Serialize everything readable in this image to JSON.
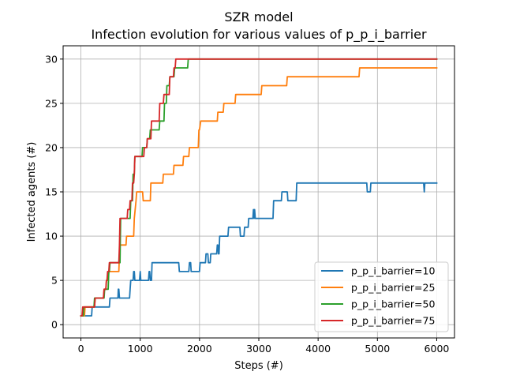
{
  "chart_data": {
    "type": "line",
    "title": "SZR model",
    "subtitle": "Infection evolution for various values of p_p_i_barrier",
    "xlabel": "Steps (#)",
    "ylabel": "Infected agents (#)",
    "xlim": [
      -300,
      6300
    ],
    "ylim": [
      -1.5,
      31.5
    ],
    "xticks": [
      0,
      1000,
      2000,
      3000,
      4000,
      5000,
      6000
    ],
    "yticks": [
      0,
      5,
      10,
      15,
      20,
      25,
      30
    ],
    "grid": true,
    "legend_position": "lower-right",
    "series": [
      {
        "name": "p_p_i_barrier=10",
        "color": "#1f77b4",
        "points": [
          [
            0,
            1
          ],
          [
            180,
            1
          ],
          [
            190,
            2
          ],
          [
            480,
            2
          ],
          [
            490,
            3
          ],
          [
            620,
            3
          ],
          [
            625,
            3
          ],
          [
            630,
            4
          ],
          [
            640,
            4
          ],
          [
            650,
            3
          ],
          [
            820,
            3
          ],
          [
            830,
            4
          ],
          [
            840,
            5
          ],
          [
            880,
            5
          ],
          [
            890,
            6
          ],
          [
            900,
            6
          ],
          [
            910,
            5
          ],
          [
            990,
            5
          ],
          [
            1000,
            6
          ],
          [
            1010,
            5
          ],
          [
            1140,
            5
          ],
          [
            1150,
            6
          ],
          [
            1160,
            6
          ],
          [
            1170,
            5
          ],
          [
            1190,
            5
          ],
          [
            1200,
            7
          ],
          [
            1650,
            7
          ],
          [
            1660,
            6
          ],
          [
            1820,
            6
          ],
          [
            1830,
            7
          ],
          [
            1850,
            7
          ],
          [
            1860,
            6
          ],
          [
            2000,
            6
          ],
          [
            2010,
            7
          ],
          [
            2100,
            7
          ],
          [
            2110,
            8
          ],
          [
            2140,
            8
          ],
          [
            2150,
            7
          ],
          [
            2180,
            7
          ],
          [
            2190,
            8
          ],
          [
            2290,
            8
          ],
          [
            2300,
            9
          ],
          [
            2310,
            9
          ],
          [
            2320,
            8
          ],
          [
            2330,
            8
          ],
          [
            2340,
            10
          ],
          [
            2480,
            10
          ],
          [
            2490,
            11
          ],
          [
            2680,
            11
          ],
          [
            2690,
            10
          ],
          [
            2750,
            10
          ],
          [
            2760,
            11
          ],
          [
            2820,
            11
          ],
          [
            2830,
            12
          ],
          [
            2900,
            12
          ],
          [
            2910,
            13
          ],
          [
            2920,
            12
          ],
          [
            2930,
            13
          ],
          [
            2940,
            12
          ],
          [
            3240,
            12
          ],
          [
            3250,
            14
          ],
          [
            3380,
            14
          ],
          [
            3390,
            15
          ],
          [
            3480,
            15
          ],
          [
            3490,
            14
          ],
          [
            3630,
            14
          ],
          [
            3640,
            16
          ],
          [
            4820,
            16
          ],
          [
            4830,
            15
          ],
          [
            4880,
            15
          ],
          [
            4890,
            16
          ],
          [
            5780,
            16
          ],
          [
            5790,
            15
          ],
          [
            5800,
            16
          ],
          [
            6000,
            16
          ]
        ]
      },
      {
        "name": "p_p_i_barrier=25",
        "color": "#ff7f0e",
        "points": [
          [
            0,
            1
          ],
          [
            60,
            1
          ],
          [
            70,
            2
          ],
          [
            230,
            2
          ],
          [
            240,
            3
          ],
          [
            380,
            3
          ],
          [
            390,
            4
          ],
          [
            420,
            4
          ],
          [
            430,
            5
          ],
          [
            460,
            5
          ],
          [
            470,
            6
          ],
          [
            640,
            6
          ],
          [
            650,
            8
          ],
          [
            660,
            9
          ],
          [
            760,
            9
          ],
          [
            770,
            10
          ],
          [
            890,
            10
          ],
          [
            900,
            12
          ],
          [
            930,
            14
          ],
          [
            940,
            15
          ],
          [
            1040,
            15
          ],
          [
            1050,
            14
          ],
          [
            1170,
            14
          ],
          [
            1180,
            16
          ],
          [
            1380,
            16
          ],
          [
            1390,
            17
          ],
          [
            1560,
            17
          ],
          [
            1570,
            18
          ],
          [
            1720,
            18
          ],
          [
            1730,
            19
          ],
          [
            1820,
            19
          ],
          [
            1830,
            20
          ],
          [
            1980,
            20
          ],
          [
            1990,
            22
          ],
          [
            2000,
            22
          ],
          [
            2020,
            23
          ],
          [
            2300,
            23
          ],
          [
            2310,
            24
          ],
          [
            2400,
            24
          ],
          [
            2410,
            25
          ],
          [
            2600,
            25
          ],
          [
            2610,
            26
          ],
          [
            3040,
            26
          ],
          [
            3050,
            27
          ],
          [
            3470,
            27
          ],
          [
            3480,
            28
          ],
          [
            4690,
            28
          ],
          [
            4700,
            29
          ],
          [
            6000,
            29
          ]
        ]
      },
      {
        "name": "p_p_i_barrier=50",
        "color": "#2ca02c",
        "points": [
          [
            0,
            1
          ],
          [
            40,
            1
          ],
          [
            50,
            2
          ],
          [
            220,
            2
          ],
          [
            230,
            3
          ],
          [
            390,
            3
          ],
          [
            400,
            4
          ],
          [
            460,
            4
          ],
          [
            470,
            6
          ],
          [
            480,
            6
          ],
          [
            490,
            7
          ],
          [
            660,
            7
          ],
          [
            670,
            12
          ],
          [
            830,
            12
          ],
          [
            840,
            14
          ],
          [
            870,
            14
          ],
          [
            880,
            17
          ],
          [
            900,
            17
          ],
          [
            910,
            19
          ],
          [
            1030,
            19
          ],
          [
            1040,
            20
          ],
          [
            1110,
            20
          ],
          [
            1120,
            21
          ],
          [
            1160,
            21
          ],
          [
            1170,
            22
          ],
          [
            1320,
            22
          ],
          [
            1330,
            23
          ],
          [
            1400,
            23
          ],
          [
            1410,
            25
          ],
          [
            1440,
            25
          ],
          [
            1450,
            27
          ],
          [
            1490,
            27
          ],
          [
            1500,
            28
          ],
          [
            1570,
            28
          ],
          [
            1580,
            29
          ],
          [
            1800,
            29
          ],
          [
            1810,
            30
          ],
          [
            6000,
            30
          ]
        ]
      },
      {
        "name": "p_p_i_barrier=75",
        "color": "#d62728",
        "points": [
          [
            0,
            1
          ],
          [
            20,
            1
          ],
          [
            30,
            2
          ],
          [
            230,
            2
          ],
          [
            240,
            3
          ],
          [
            380,
            3
          ],
          [
            390,
            4
          ],
          [
            420,
            4
          ],
          [
            430,
            5
          ],
          [
            440,
            5
          ],
          [
            450,
            6
          ],
          [
            470,
            6
          ],
          [
            480,
            7
          ],
          [
            640,
            7
          ],
          [
            650,
            9
          ],
          [
            660,
            12
          ],
          [
            780,
            12
          ],
          [
            790,
            13
          ],
          [
            820,
            13
          ],
          [
            830,
            14
          ],
          [
            860,
            14
          ],
          [
            870,
            16
          ],
          [
            890,
            16
          ],
          [
            900,
            17
          ],
          [
            910,
            19
          ],
          [
            1060,
            19
          ],
          [
            1070,
            20
          ],
          [
            1110,
            20
          ],
          [
            1120,
            21
          ],
          [
            1180,
            21
          ],
          [
            1190,
            23
          ],
          [
            1320,
            23
          ],
          [
            1330,
            25
          ],
          [
            1390,
            25
          ],
          [
            1400,
            26
          ],
          [
            1490,
            26
          ],
          [
            1500,
            28
          ],
          [
            1560,
            28
          ],
          [
            1570,
            29
          ],
          [
            1590,
            29
          ],
          [
            1600,
            30
          ],
          [
            6000,
            30
          ]
        ]
      }
    ]
  }
}
